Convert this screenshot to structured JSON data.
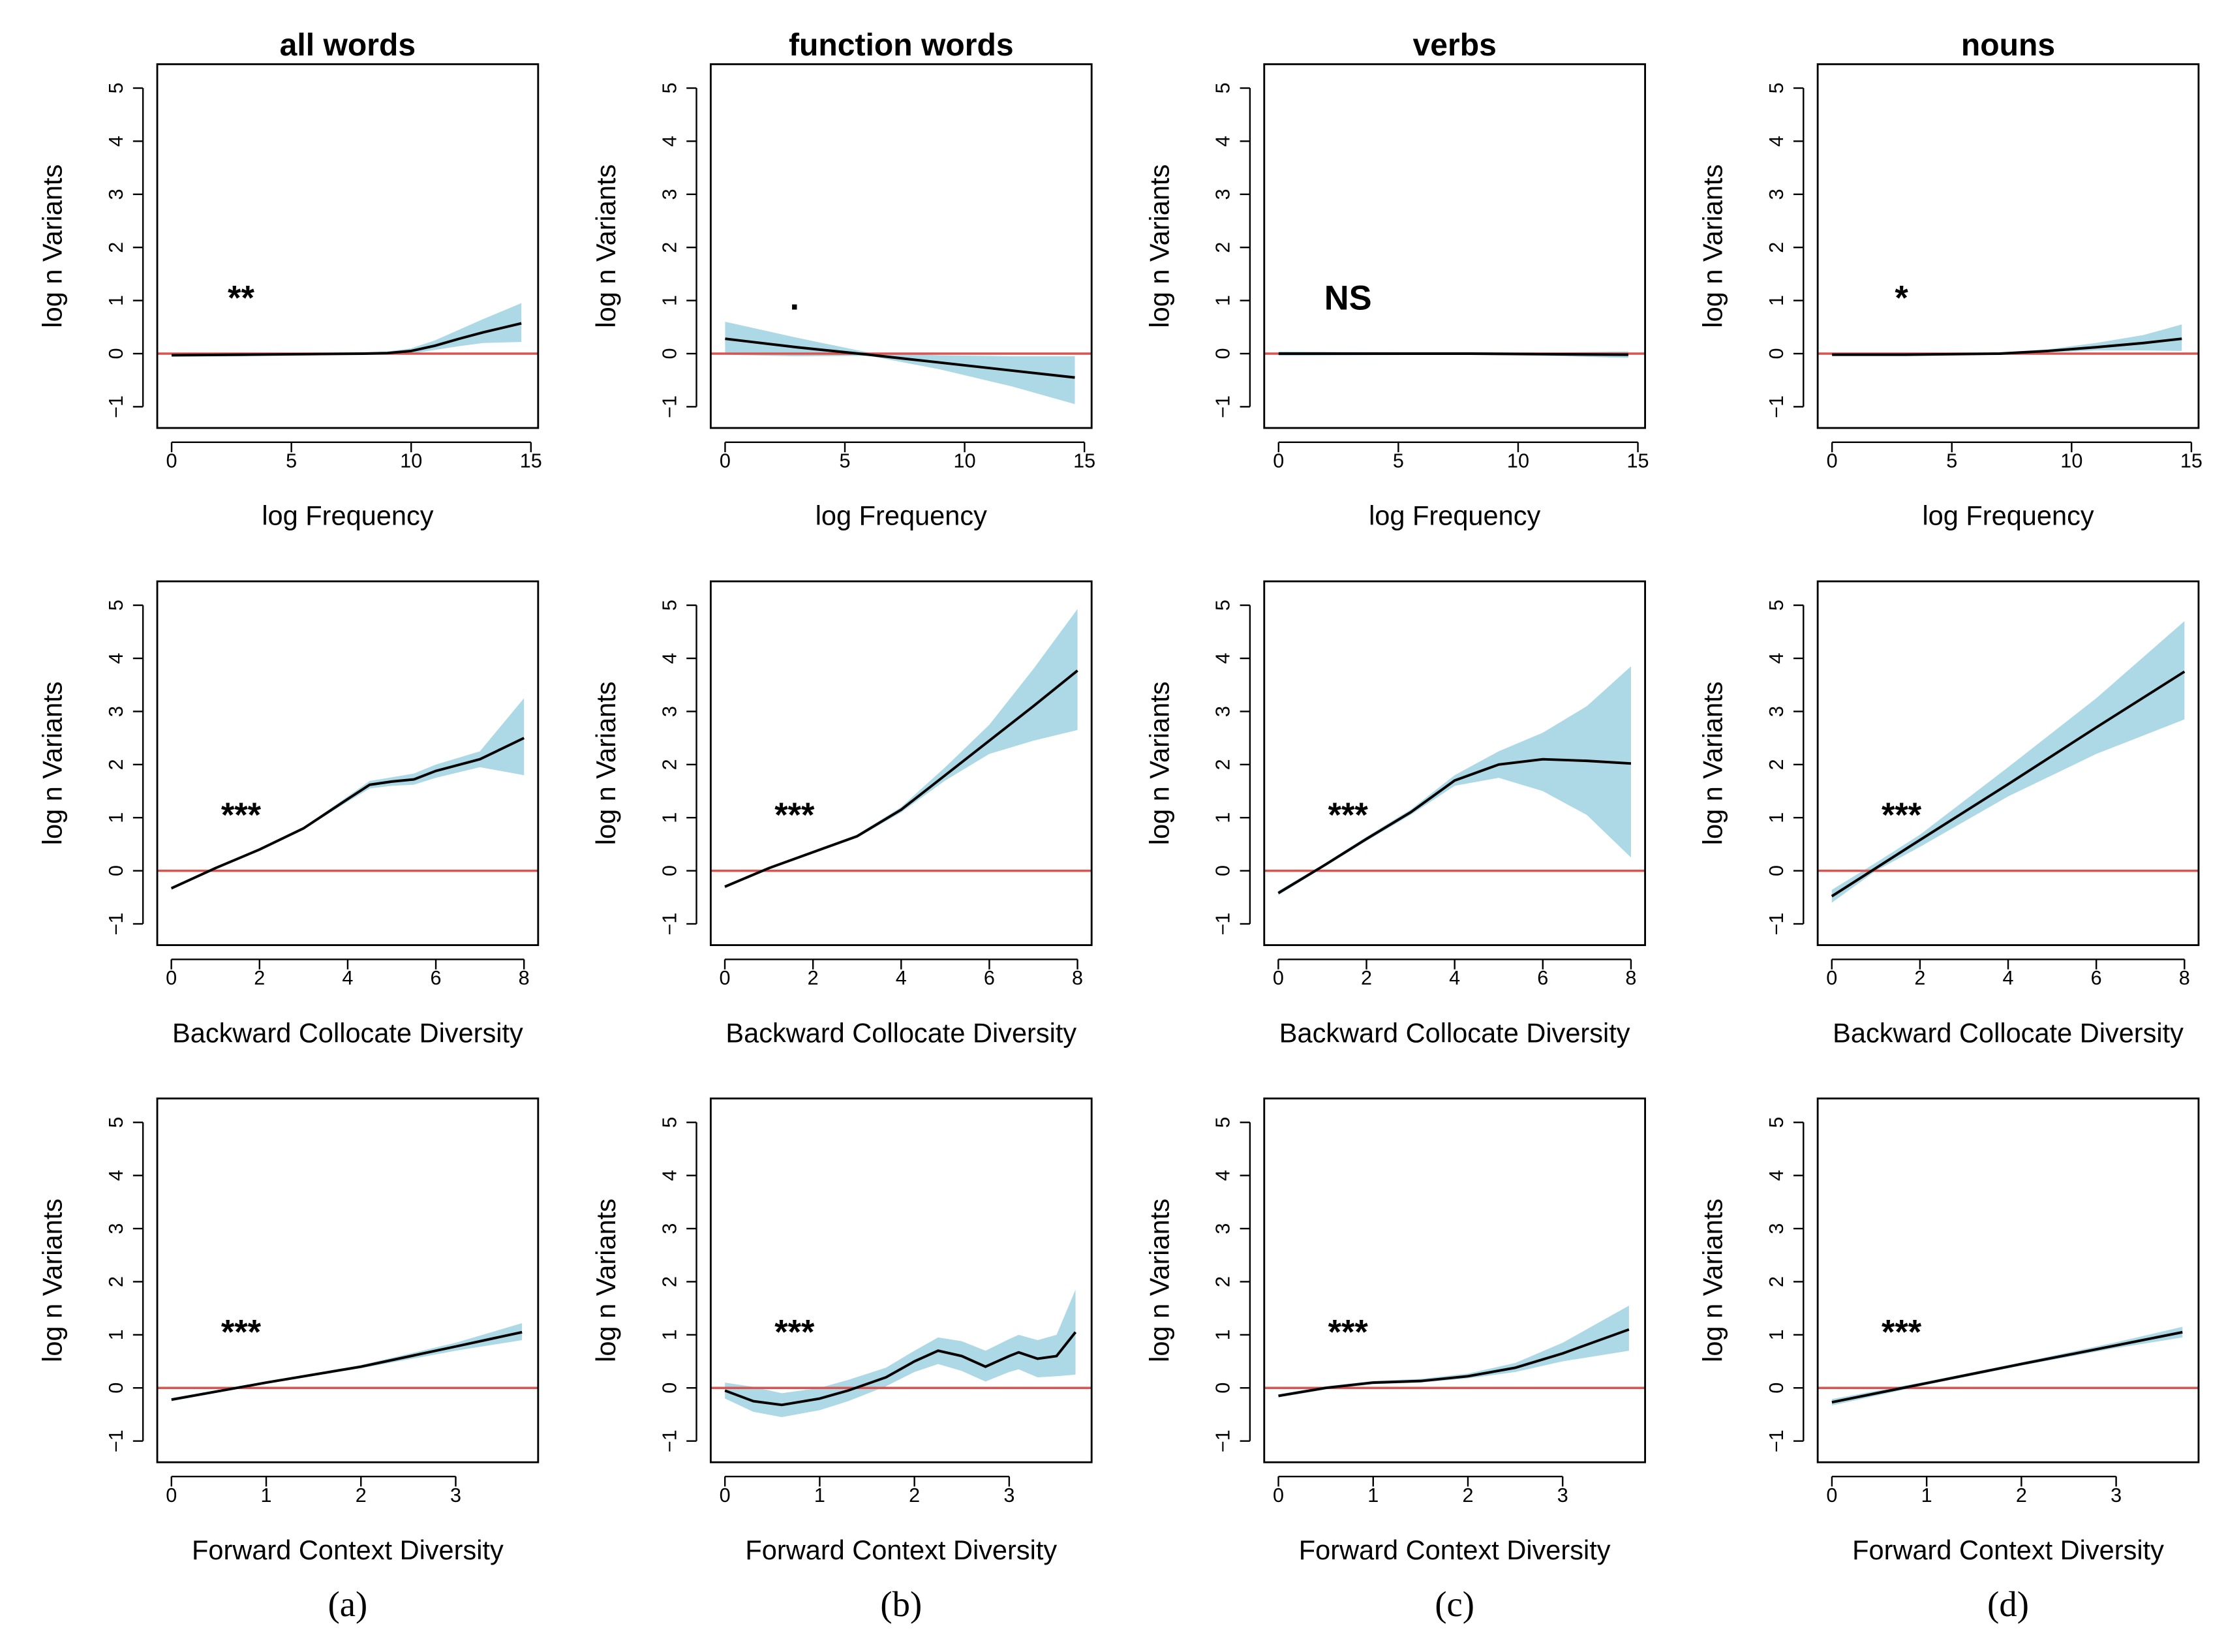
{
  "panel_labels": [
    "(a)",
    "(b)",
    "(c)",
    "(d)"
  ],
  "chart_data": [
    {
      "type": "line",
      "title": "all words",
      "xlabel": "log Frequency",
      "ylabel": "log n Variants",
      "annotation": "**",
      "xlim": [
        -0.6,
        15.3
      ],
      "ylim": [
        -1.4,
        5.45
      ],
      "xticks": [
        0,
        5,
        10,
        15
      ],
      "yticks": [
        {
          "value": -1,
          "label": "−1"
        },
        0,
        1,
        2,
        3,
        4,
        5
      ],
      "reference_line": 0,
      "color": "#000000",
      "band_color": "#add8e6",
      "reference_color": "#d9534f",
      "x": [
        0,
        3,
        8,
        9,
        10,
        11,
        12,
        13,
        14.6
      ],
      "values": [
        -0.03,
        -0.02,
        0,
        0.01,
        0.05,
        0.15,
        0.28,
        0.4,
        0.57
      ],
      "lower": [
        -0.06,
        -0.05,
        -0.02,
        -0.02,
        0,
        0.07,
        0.14,
        0.2,
        0.22
      ],
      "upper": [
        0,
        0.01,
        0.02,
        0.04,
        0.1,
        0.25,
        0.45,
        0.65,
        0.95
      ]
    },
    {
      "type": "line",
      "title": "function words",
      "xlabel": "log Frequency",
      "ylabel": "log n Variants",
      "annotation": ".",
      "xlim": [
        -0.6,
        15.3
      ],
      "ylim": [
        -1.4,
        5.45
      ],
      "xticks": [
        0,
        5,
        10,
        15
      ],
      "yticks": [
        {
          "value": -1,
          "label": "−1"
        },
        0,
        1,
        2,
        3,
        4,
        5
      ],
      "reference_line": 0,
      "color": "#000000",
      "band_color": "#add8e6",
      "reference_color": "#d9534f",
      "x": [
        0,
        3,
        6,
        9,
        12,
        14.6
      ],
      "values": [
        0.28,
        0.12,
        -0.02,
        -0.17,
        -0.32,
        -0.45
      ],
      "lower": [
        -0.02,
        -0.05,
        -0.04,
        -0.3,
        -0.62,
        -0.95
      ],
      "upper": [
        0.6,
        0.3,
        0.02,
        -0.03,
        -0.05,
        -0.05
      ]
    },
    {
      "type": "line",
      "title": "verbs",
      "xlabel": "log Frequency",
      "ylabel": "log n Variants",
      "annotation": "NS",
      "xlim": [
        -0.6,
        15.3
      ],
      "ylim": [
        -1.4,
        5.45
      ],
      "xticks": [
        0,
        5,
        10,
        15
      ],
      "yticks": [
        {
          "value": -1,
          "label": "−1"
        },
        0,
        1,
        2,
        3,
        4,
        5
      ],
      "reference_line": 0,
      "color": "#000000",
      "band_color": "#add8e6",
      "reference_color": "#d9534f",
      "x": [
        0,
        3,
        8,
        11,
        14.6
      ],
      "values": [
        0,
        0,
        0,
        -0.01,
        -0.02
      ],
      "lower": [
        -0.04,
        -0.03,
        -0.02,
        -0.04,
        -0.08
      ],
      "upper": [
        0.04,
        0.03,
        0.02,
        0.02,
        0.04
      ]
    },
    {
      "type": "line",
      "title": "nouns",
      "xlabel": "log Frequency",
      "ylabel": "log n Variants",
      "annotation": "*",
      "xlim": [
        -0.6,
        15.3
      ],
      "ylim": [
        -1.4,
        5.45
      ],
      "xticks": [
        0,
        5,
        10,
        15
      ],
      "yticks": [
        {
          "value": -1,
          "label": "−1"
        },
        0,
        1,
        2,
        3,
        4,
        5
      ],
      "reference_line": 0,
      "color": "#000000",
      "band_color": "#add8e6",
      "reference_color": "#d9534f",
      "x": [
        0,
        3,
        7,
        9,
        11,
        13,
        14.6
      ],
      "values": [
        -0.02,
        -0.02,
        0,
        0.05,
        0.12,
        0.2,
        0.28
      ],
      "lower": [
        -0.04,
        -0.04,
        -0.02,
        0.02,
        0.06,
        0.06,
        0.05
      ],
      "upper": [
        0,
        0,
        0.02,
        0.08,
        0.2,
        0.35,
        0.55
      ]
    },
    {
      "type": "line",
      "xlabel": "Backward Collocate Diversity",
      "ylabel": "log n Variants",
      "annotation": "***",
      "xlim": [
        -0.32,
        8.32
      ],
      "ylim": [
        -1.4,
        5.45
      ],
      "xticks": [
        0,
        2,
        4,
        6,
        8
      ],
      "yticks": [
        {
          "value": -1,
          "label": "−1"
        },
        0,
        1,
        2,
        3,
        4,
        5
      ],
      "reference_line": 0,
      "color": "#000000",
      "band_color": "#add8e6",
      "reference_color": "#d9534f",
      "x": [
        0,
        1,
        2,
        3,
        4,
        4.5,
        5,
        5.5,
        6,
        7,
        8
      ],
      "values": [
        -0.33,
        0.05,
        0.4,
        0.8,
        1.35,
        1.62,
        1.68,
        1.72,
        1.88,
        2.1,
        2.5
      ],
      "lower": [
        -0.36,
        0.03,
        0.38,
        0.78,
        1.3,
        1.55,
        1.6,
        1.62,
        1.75,
        1.95,
        1.8
      ],
      "upper": [
        -0.3,
        0.07,
        0.42,
        0.82,
        1.4,
        1.69,
        1.76,
        1.83,
        2.0,
        2.25,
        3.25
      ]
    },
    {
      "type": "line",
      "xlabel": "Backward Collocate Diversity",
      "ylabel": "log n Variants",
      "annotation": "***",
      "xlim": [
        -0.32,
        8.32
      ],
      "ylim": [
        -1.4,
        5.45
      ],
      "xticks": [
        0,
        2,
        4,
        6,
        8
      ],
      "yticks": [
        {
          "value": -1,
          "label": "−1"
        },
        0,
        1,
        2,
        3,
        4,
        5
      ],
      "reference_line": 0,
      "color": "#000000",
      "band_color": "#add8e6",
      "reference_color": "#d9534f",
      "x": [
        0,
        1,
        2,
        3,
        4,
        5,
        6,
        7,
        8
      ],
      "values": [
        -0.3,
        0.05,
        0.35,
        0.65,
        1.15,
        1.8,
        2.45,
        3.1,
        3.77
      ],
      "lower": [
        -0.33,
        0.03,
        0.33,
        0.62,
        1.1,
        1.7,
        2.2,
        2.45,
        2.65
      ],
      "upper": [
        -0.27,
        0.07,
        0.37,
        0.68,
        1.2,
        1.95,
        2.75,
        3.8,
        4.93
      ]
    },
    {
      "type": "line",
      "xlabel": "Backward Collocate Diversity",
      "ylabel": "log n Variants",
      "annotation": "***",
      "xlim": [
        -0.32,
        8.32
      ],
      "ylim": [
        -1.4,
        5.45
      ],
      "xticks": [
        0,
        2,
        4,
        6,
        8
      ],
      "yticks": [
        {
          "value": -1,
          "label": "−1"
        },
        0,
        1,
        2,
        3,
        4,
        5
      ],
      "reference_line": 0,
      "color": "#000000",
      "band_color": "#add8e6",
      "reference_color": "#d9534f",
      "x": [
        0,
        1,
        2,
        3,
        4,
        5,
        6,
        7,
        8
      ],
      "values": [
        -0.42,
        0.08,
        0.6,
        1.1,
        1.7,
        2.0,
        2.1,
        2.07,
        2.02
      ],
      "lower": [
        -0.46,
        0.05,
        0.56,
        1.05,
        1.6,
        1.75,
        1.5,
        1.05,
        0.25
      ],
      "upper": [
        -0.38,
        0.11,
        0.64,
        1.15,
        1.8,
        2.25,
        2.6,
        3.1,
        3.85
      ]
    },
    {
      "type": "line",
      "xlabel": "Backward Collocate Diversity",
      "ylabel": "log n Variants",
      "annotation": "***",
      "xlim": [
        -0.32,
        8.32
      ],
      "ylim": [
        -1.4,
        5.45
      ],
      "xticks": [
        0,
        2,
        4,
        6,
        8
      ],
      "yticks": [
        {
          "value": -1,
          "label": "−1"
        },
        0,
        1,
        2,
        3,
        4,
        5
      ],
      "reference_line": 0,
      "color": "#000000",
      "band_color": "#add8e6",
      "reference_color": "#d9534f",
      "x": [
        0,
        1,
        2,
        4,
        6,
        8
      ],
      "values": [
        -0.48,
        0.05,
        0.58,
        1.63,
        2.7,
        3.75
      ],
      "lower": [
        -0.6,
        0.0,
        0.45,
        1.4,
        2.2,
        2.85
      ],
      "upper": [
        -0.36,
        0.15,
        0.68,
        1.95,
        3.25,
        4.7
      ]
    },
    {
      "type": "line",
      "xlabel": "Forward Context Diversity",
      "ylabel": "log n Variants",
      "annotation": "***",
      "xlim": [
        -0.15,
        3.87
      ],
      "ylim": [
        -1.4,
        5.45
      ],
      "xticks": [
        0,
        1,
        2,
        3
      ],
      "yticks": [
        {
          "value": -1,
          "label": "−1"
        },
        0,
        1,
        2,
        3,
        4,
        5
      ],
      "reference_line": 0,
      "color": "#000000",
      "band_color": "#add8e6",
      "reference_color": "#d9534f",
      "x": [
        0,
        1,
        2,
        3,
        3.7
      ],
      "values": [
        -0.22,
        0.1,
        0.4,
        0.78,
        1.05
      ],
      "lower": [
        -0.25,
        0.08,
        0.37,
        0.7,
        0.9
      ],
      "upper": [
        -0.19,
        0.12,
        0.43,
        0.85,
        1.22
      ]
    },
    {
      "type": "line",
      "xlabel": "Forward Context Diversity",
      "ylabel": "log n Variants",
      "annotation": "***",
      "xlim": [
        -0.15,
        3.87
      ],
      "ylim": [
        -1.4,
        5.45
      ],
      "xticks": [
        0,
        1,
        2,
        3
      ],
      "yticks": [
        {
          "value": -1,
          "label": "−1"
        },
        0,
        1,
        2,
        3,
        4,
        5
      ],
      "reference_line": 0,
      "color": "#000000",
      "band_color": "#add8e6",
      "reference_color": "#d9534f",
      "x": [
        0,
        0.3,
        0.6,
        1,
        1.3,
        1.7,
        2,
        2.25,
        2.5,
        2.75,
        3,
        3.1,
        3.3,
        3.5,
        3.7
      ],
      "values": [
        -0.05,
        -0.25,
        -0.32,
        -0.2,
        -0.05,
        0.2,
        0.5,
        0.7,
        0.6,
        0.4,
        0.6,
        0.67,
        0.55,
        0.6,
        1.05
      ],
      "lower": [
        -0.2,
        -0.45,
        -0.55,
        -0.42,
        -0.25,
        0.03,
        0.3,
        0.45,
        0.32,
        0.12,
        0.3,
        0.35,
        0.2,
        0.22,
        0.25
      ],
      "upper": [
        0.1,
        0.02,
        -0.1,
        0,
        0.15,
        0.38,
        0.7,
        0.95,
        0.88,
        0.7,
        0.92,
        1.0,
        0.9,
        1.0,
        1.85
      ]
    },
    {
      "type": "line",
      "xlabel": "Forward Context Diversity",
      "ylabel": "log n Variants",
      "annotation": "***",
      "xlim": [
        -0.15,
        3.87
      ],
      "ylim": [
        -1.4,
        5.45
      ],
      "xticks": [
        0,
        1,
        2,
        3
      ],
      "yticks": [
        {
          "value": -1,
          "label": "−1"
        },
        0,
        1,
        2,
        3,
        4,
        5
      ],
      "reference_line": 0,
      "color": "#000000",
      "band_color": "#add8e6",
      "reference_color": "#d9534f",
      "x": [
        0,
        0.5,
        1,
        1.5,
        2,
        2.5,
        3,
        3.7
      ],
      "values": [
        -0.15,
        0,
        0.1,
        0.13,
        0.22,
        0.38,
        0.65,
        1.1
      ],
      "lower": [
        -0.18,
        -0.03,
        0.07,
        0.1,
        0.18,
        0.3,
        0.5,
        0.7
      ],
      "upper": [
        -0.12,
        0.03,
        0.13,
        0.17,
        0.27,
        0.47,
        0.85,
        1.55
      ]
    },
    {
      "type": "line",
      "xlabel": "Forward Context Diversity",
      "ylabel": "log n Variants",
      "annotation": "***",
      "xlim": [
        -0.15,
        3.87
      ],
      "ylim": [
        -1.4,
        5.45
      ],
      "xticks": [
        0,
        1,
        2,
        3
      ],
      "yticks": [
        {
          "value": -1,
          "label": "−1"
        },
        0,
        1,
        2,
        3,
        4,
        5
      ],
      "reference_line": 0,
      "color": "#000000",
      "band_color": "#add8e6",
      "reference_color": "#d9534f",
      "x": [
        0,
        1,
        2,
        3,
        3.7
      ],
      "values": [
        -0.27,
        0.09,
        0.45,
        0.8,
        1.05
      ],
      "lower": [
        -0.33,
        0.06,
        0.42,
        0.75,
        0.95
      ],
      "upper": [
        -0.21,
        0.12,
        0.48,
        0.86,
        1.15
      ]
    }
  ]
}
